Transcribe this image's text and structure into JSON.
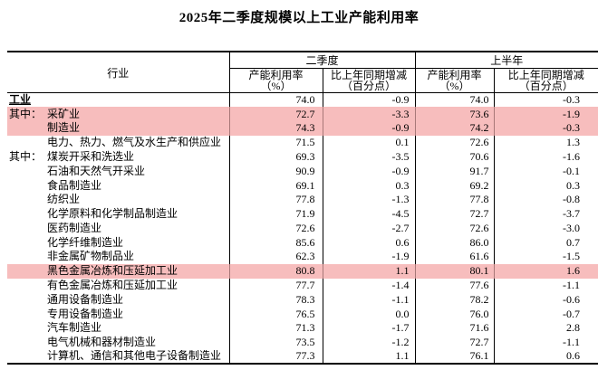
{
  "title": "2025年二季度规模以上工业产能利用率",
  "colors": {
    "highlight": "#f7bdbd",
    "highlight_border": "#a87878",
    "border": "#000000",
    "text": "#000000"
  },
  "table": {
    "col_industry": "行业",
    "group_q2": "二季度",
    "group_h1": "上半年",
    "sub_rate_l1": "产能利用率",
    "sub_rate_l2": "（%）",
    "sub_change_l1": "比上年同期增减",
    "sub_change_l2": "（百分点）",
    "rows": [
      {
        "prefix": "",
        "name": "工业",
        "q2_rate": "74.0",
        "q2_change": "-0.9",
        "h1_rate": "74.0",
        "h1_change": "-0.3",
        "emphasis": true,
        "indent": false,
        "highlight": false
      },
      {
        "prefix": "其中：",
        "name": "采矿业",
        "q2_rate": "72.7",
        "q2_change": "-3.3",
        "h1_rate": "73.6",
        "h1_change": "-1.9",
        "emphasis": false,
        "indent": true,
        "highlight": true
      },
      {
        "prefix": "",
        "name": "制造业",
        "q2_rate": "74.3",
        "q2_change": "-0.9",
        "h1_rate": "74.2",
        "h1_change": "-0.3",
        "emphasis": false,
        "indent": true,
        "highlight": true
      },
      {
        "prefix": "",
        "name": "电力、热力、燃气及水生产和供应业",
        "q2_rate": "71.5",
        "q2_change": "0.1",
        "h1_rate": "72.6",
        "h1_change": "1.3",
        "emphasis": false,
        "indent": true,
        "highlight": false
      },
      {
        "prefix": "其中：",
        "name": "煤炭开采和洗选业",
        "q2_rate": "69.3",
        "q2_change": "-3.5",
        "h1_rate": "70.6",
        "h1_change": "-1.6",
        "emphasis": false,
        "indent": true,
        "highlight": false
      },
      {
        "prefix": "",
        "name": "石油和天然气开采业",
        "q2_rate": "90.9",
        "q2_change": "-0.9",
        "h1_rate": "91.7",
        "h1_change": "-0.1",
        "emphasis": false,
        "indent": true,
        "highlight": false
      },
      {
        "prefix": "",
        "name": "食品制造业",
        "q2_rate": "69.1",
        "q2_change": "0.3",
        "h1_rate": "69.2",
        "h1_change": "0.3",
        "emphasis": false,
        "indent": true,
        "highlight": false
      },
      {
        "prefix": "",
        "name": "纺织业",
        "q2_rate": "77.8",
        "q2_change": "-1.3",
        "h1_rate": "77.8",
        "h1_change": "-0.8",
        "emphasis": false,
        "indent": true,
        "highlight": false
      },
      {
        "prefix": "",
        "name": "化学原料和化学制品制造业",
        "q2_rate": "71.9",
        "q2_change": "-4.5",
        "h1_rate": "72.7",
        "h1_change": "-3.7",
        "emphasis": false,
        "indent": true,
        "highlight": false
      },
      {
        "prefix": "",
        "name": "医药制造业",
        "q2_rate": "72.6",
        "q2_change": "-2.7",
        "h1_rate": "72.6",
        "h1_change": "-3.0",
        "emphasis": false,
        "indent": true,
        "highlight": false
      },
      {
        "prefix": "",
        "name": "化学纤维制造业",
        "q2_rate": "85.6",
        "q2_change": "0.6",
        "h1_rate": "86.0",
        "h1_change": "0.7",
        "emphasis": false,
        "indent": true,
        "highlight": false
      },
      {
        "prefix": "",
        "name": "非金属矿物制品业",
        "q2_rate": "62.3",
        "q2_change": "-1.9",
        "h1_rate": "61.6",
        "h1_change": "-1.5",
        "emphasis": false,
        "indent": true,
        "highlight": false
      },
      {
        "prefix": "",
        "name": "黑色金属冶炼和压延加工业",
        "q2_rate": "80.8",
        "q2_change": "1.1",
        "h1_rate": "80.1",
        "h1_change": "1.6",
        "emphasis": false,
        "indent": true,
        "highlight": true
      },
      {
        "prefix": "",
        "name": "有色金属冶炼和压延加工业",
        "q2_rate": "77.7",
        "q2_change": "-1.4",
        "h1_rate": "77.6",
        "h1_change": "-1.1",
        "emphasis": false,
        "indent": true,
        "highlight": false
      },
      {
        "prefix": "",
        "name": "通用设备制造业",
        "q2_rate": "78.3",
        "q2_change": "-1.1",
        "h1_rate": "78.2",
        "h1_change": "-0.6",
        "emphasis": false,
        "indent": true,
        "highlight": false
      },
      {
        "prefix": "",
        "name": "专用设备制造业",
        "q2_rate": "76.5",
        "q2_change": "0.0",
        "h1_rate": "76.0",
        "h1_change": "-0.7",
        "emphasis": false,
        "indent": true,
        "highlight": false
      },
      {
        "prefix": "",
        "name": "汽车制造业",
        "q2_rate": "71.3",
        "q2_change": "-1.7",
        "h1_rate": "71.6",
        "h1_change": "2.8",
        "emphasis": false,
        "indent": true,
        "highlight": false
      },
      {
        "prefix": "",
        "name": "电气机械和器材制造业",
        "q2_rate": "73.5",
        "q2_change": "-1.2",
        "h1_rate": "72.7",
        "h1_change": "-1.1",
        "emphasis": false,
        "indent": true,
        "highlight": false
      },
      {
        "prefix": "",
        "name": "计算机、通信和其他电子设备制造业",
        "q2_rate": "77.3",
        "q2_change": "1.1",
        "h1_rate": "76.1",
        "h1_change": "0.6",
        "emphasis": false,
        "indent": true,
        "highlight": false
      }
    ]
  }
}
